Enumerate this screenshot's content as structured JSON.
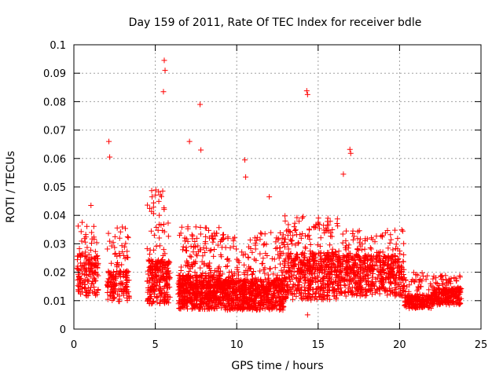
{
  "chart_data": {
    "type": "scatter",
    "title": "Day 159 of 2011, Rate Of TEC Index for receiver bdle",
    "xlabel": "GPS time / hours",
    "ylabel": "ROTI / TECUs",
    "xlim": [
      0,
      25
    ],
    "ylim": [
      0,
      0.1
    ],
    "x_ticks": [
      0,
      5,
      10,
      15,
      20,
      25
    ],
    "x_tick_labels": [
      "0",
      "5",
      "10",
      "15",
      "20",
      "25"
    ],
    "y_ticks": [
      0,
      0.01,
      0.02,
      0.03,
      0.04,
      0.05,
      0.06,
      0.07,
      0.08,
      0.09,
      0.1
    ],
    "y_tick_labels": [
      "0",
      "0.01",
      "0.02",
      "0.03",
      "0.04",
      "0.05",
      "0.06",
      "0.07",
      "0.08",
      "0.09",
      "0.1"
    ],
    "grid": true,
    "marker": "+",
    "marker_color": "#ff0000",
    "legend": "none",
    "notable_points": [
      {
        "x": 5.55,
        "y": 0.0945
      },
      {
        "x": 5.6,
        "y": 0.091
      },
      {
        "x": 5.5,
        "y": 0.0835
      },
      {
        "x": 7.75,
        "y": 0.079
      },
      {
        "x": 14.3,
        "y": 0.0838
      },
      {
        "x": 14.35,
        "y": 0.0825
      },
      {
        "x": 7.1,
        "y": 0.066
      },
      {
        "x": 2.15,
        "y": 0.066
      },
      {
        "x": 2.2,
        "y": 0.0605
      },
      {
        "x": 16.95,
        "y": 0.0632
      },
      {
        "x": 17.0,
        "y": 0.0618
      },
      {
        "x": 7.8,
        "y": 0.063
      },
      {
        "x": 10.5,
        "y": 0.0595
      },
      {
        "x": 10.55,
        "y": 0.0535
      },
      {
        "x": 16.55,
        "y": 0.0545
      },
      {
        "x": 12.0,
        "y": 0.0465
      },
      {
        "x": 1.05,
        "y": 0.0435
      },
      {
        "x": 4.8,
        "y": 0.0465
      },
      {
        "x": 3.3,
        "y": 0.0325
      },
      {
        "x": 0.35,
        "y": 0.0265
      },
      {
        "x": 14.35,
        "y": 0.005
      }
    ],
    "segments": [
      {
        "x_start": 0.2,
        "x_end": 1.5,
        "y_low": 0.008,
        "y_mean": 0.02,
        "y_high": 0.038,
        "density": 170
      },
      {
        "x_start": 2.05,
        "x_end": 3.4,
        "y_low": 0.007,
        "y_mean": 0.016,
        "y_high": 0.036,
        "density": 160
      },
      {
        "x_start": 4.5,
        "x_end": 5.9,
        "y_low": 0.005,
        "y_mean": 0.018,
        "y_high": 0.05,
        "density": 260
      },
      {
        "x_start": 6.4,
        "x_end": 9.0,
        "y_low": 0.004,
        "y_mean": 0.014,
        "y_high": 0.036,
        "density": 600
      },
      {
        "x_start": 9.0,
        "x_end": 12.9,
        "y_low": 0.004,
        "y_mean": 0.013,
        "y_high": 0.034,
        "density": 800
      },
      {
        "x_start": 12.9,
        "x_end": 16.2,
        "y_low": 0.006,
        "y_mean": 0.02,
        "y_high": 0.04,
        "density": 550
      },
      {
        "x_start": 16.2,
        "x_end": 20.3,
        "y_low": 0.008,
        "y_mean": 0.02,
        "y_high": 0.035,
        "density": 600
      },
      {
        "x_start": 20.3,
        "x_end": 22.0,
        "y_low": 0.006,
        "y_mean": 0.01,
        "y_high": 0.02,
        "density": 220
      },
      {
        "x_start": 22.0,
        "x_end": 23.8,
        "y_low": 0.007,
        "y_mean": 0.012,
        "y_high": 0.019,
        "density": 260
      }
    ]
  }
}
